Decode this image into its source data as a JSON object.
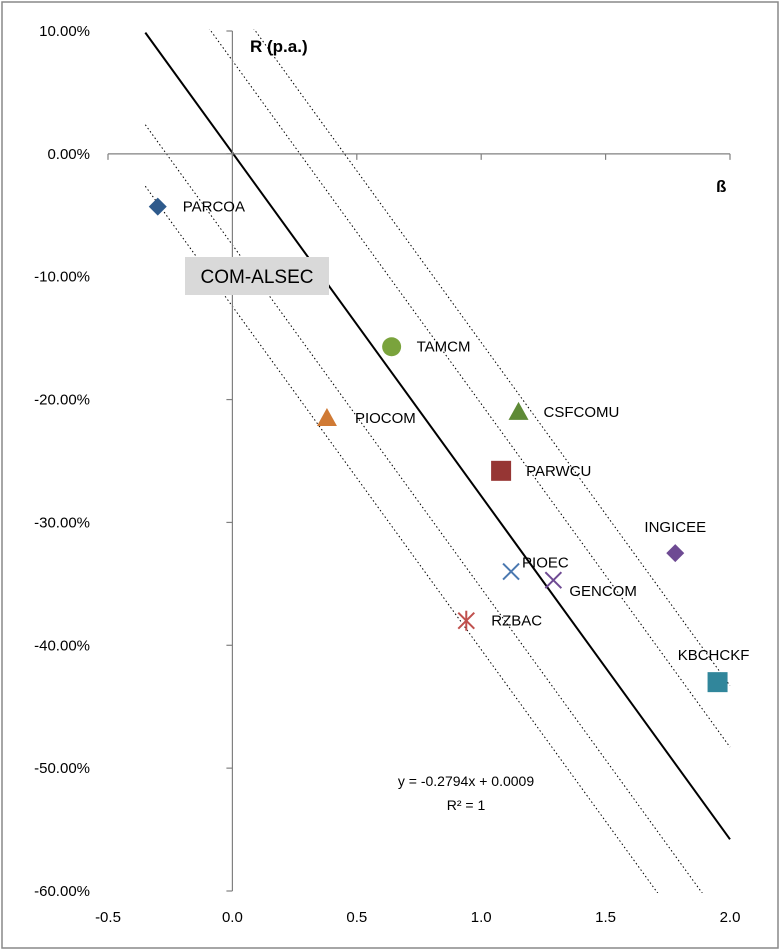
{
  "chart_data": {
    "type": "scatter",
    "title": "",
    "xlabel": "ß",
    "ylabel": "R (p.a.)",
    "xlim": [
      -0.5,
      2.0
    ],
    "ylim": [
      -0.6,
      0.1
    ],
    "x_ticks": [
      {
        "value": -0.5,
        "label": "-0.5"
      },
      {
        "value": 0.0,
        "label": "0.0"
      },
      {
        "value": 0.5,
        "label": "0.5"
      },
      {
        "value": 1.0,
        "label": "1.0"
      },
      {
        "value": 1.5,
        "label": "1.5"
      },
      {
        "value": 2.0,
        "label": "2.0"
      }
    ],
    "y_ticks": [
      {
        "value": 0.1,
        "label": "10.00%"
      },
      {
        "value": 0.0,
        "label": "0.00%"
      },
      {
        "value": -0.1,
        "label": "-10.00%"
      },
      {
        "value": -0.2,
        "label": "-20.00%"
      },
      {
        "value": -0.3,
        "label": "-30.00%"
      },
      {
        "value": -0.4,
        "label": "-40.00%"
      },
      {
        "value": -0.5,
        "label": "-50.00%"
      },
      {
        "value": -0.6,
        "label": "-60.00%"
      }
    ],
    "grid": false,
    "legend": "none",
    "sector_label": "COM-ALSEC",
    "points": [
      {
        "label": "PARCOA",
        "x": -0.3,
        "y": -0.043,
        "marker": "diamond",
        "color": "#2e5a8c"
      },
      {
        "label": "TAMCM",
        "x": 0.64,
        "y": -0.157,
        "marker": "circle",
        "color": "#7aa33c"
      },
      {
        "label": "PIOCOM",
        "x": 0.38,
        "y": -0.215,
        "marker": "triangle",
        "color": "#d07a34"
      },
      {
        "label": "CSFCOMU",
        "x": 1.15,
        "y": -0.21,
        "marker": "triangle",
        "color": "#5e8a36"
      },
      {
        "label": "PARWCU",
        "x": 1.08,
        "y": -0.258,
        "marker": "square",
        "color": "#963634"
      },
      {
        "label": "INGICEE",
        "x": 1.78,
        "y": -0.325,
        "marker": "diamond",
        "color": "#6e4a93"
      },
      {
        "label": "PIOEC",
        "x": 1.12,
        "y": -0.34,
        "marker": "x",
        "color": "#4a78b0"
      },
      {
        "label": "GENCOM",
        "x": 1.29,
        "y": -0.347,
        "marker": "x",
        "color": "#6e4a93"
      },
      {
        "label": "RZBAC",
        "x": 0.94,
        "y": -0.38,
        "marker": "star",
        "color": "#c0504d"
      },
      {
        "label": "KBCHCKF",
        "x": 1.95,
        "y": -0.43,
        "marker": "square",
        "color": "#31869b"
      }
    ],
    "trendline": {
      "slope": -0.2794,
      "intercept": 0.0009,
      "equation": "y = -0.2794x + 0.0009",
      "r_squared": "R² = 1",
      "color": "#000000"
    },
    "parallel_lines": {
      "intercept_offsets": [
        0.125,
        0.075,
        -0.075,
        -0.125
      ],
      "style": "dotted",
      "color": "#000000"
    }
  }
}
